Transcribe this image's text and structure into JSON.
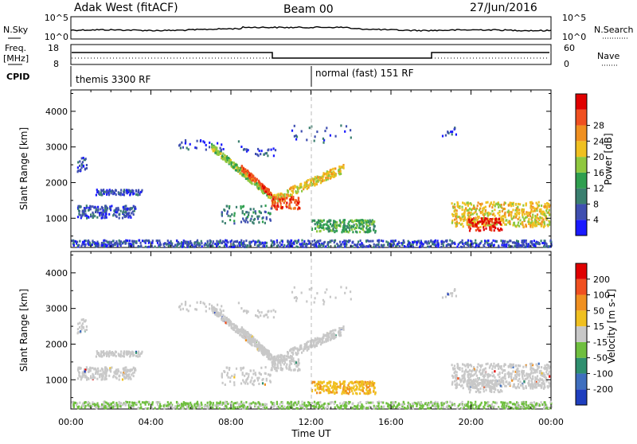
{
  "header": {
    "station": "Adak West (fitACF)",
    "beam": "Beam 00",
    "date": "27/Jun/2016"
  },
  "noise_panel": {
    "left_label": "N.Sky",
    "right_label": "N.Search",
    "ticks": [
      "10^5",
      "10^0"
    ],
    "right_ticks": [
      "10^5",
      "10^0"
    ]
  },
  "freq_panel": {
    "left_label_1": "Freq.",
    "left_label_2": "[MHz]",
    "left_ticks": [
      "18",
      "8"
    ],
    "right_label": "Nave",
    "right_ticks": [
      "60",
      "0"
    ]
  },
  "cpid_panel": {
    "label": "CPID",
    "modes": [
      "themis 3300 RF",
      "normal (fast) 151 RF"
    ]
  },
  "chart_data": [
    {
      "type": "heatmap",
      "name": "power",
      "ylabel": "Slant Range [km]",
      "xlabel": "Time UT",
      "x_ticks": [
        "00:00",
        "04:00",
        "08:00",
        "12:00",
        "16:00",
        "20:00",
        "00:00"
      ],
      "y_ticks": [
        "1000",
        "2000",
        "3000",
        "4000"
      ],
      "ylim": [
        180,
        4600
      ],
      "colorbar": {
        "label": "Power [dB]",
        "ticks": [
          "4",
          "8",
          "12",
          "16",
          "20",
          "24",
          "28"
        ],
        "colors": [
          "#1a1aff",
          "#3f4fb0",
          "#3a7f6f",
          "#2f9f4f",
          "#8fc83f",
          "#f0c020",
          "#f09020",
          "#f05020",
          "#e00000"
        ]
      }
    },
    {
      "type": "heatmap",
      "name": "velocity",
      "ylabel": "Slant Range [km]",
      "xlabel": "Time UT",
      "x_ticks": [
        "00:00",
        "04:00",
        "08:00",
        "12:00",
        "16:00",
        "20:00",
        "00:00"
      ],
      "y_ticks": [
        "1000",
        "2000",
        "3000",
        "4000"
      ],
      "ylim": [
        180,
        4600
      ],
      "colorbar": {
        "label": "Velocity [m s-1]",
        "ticks": [
          "200",
          "100",
          "50",
          "15",
          "-15",
          "-50",
          "-100",
          "-200"
        ],
        "colors": [
          "#1f3fbf",
          "#3f6fbf",
          "#2f8f6f",
          "#6fbf3f",
          "#c8c8c8",
          "#f0c020",
          "#f09020",
          "#f05020",
          "#e00000"
        ]
      }
    }
  ],
  "x_axis_title": "Time UT",
  "cpid_change_time": "12:00"
}
